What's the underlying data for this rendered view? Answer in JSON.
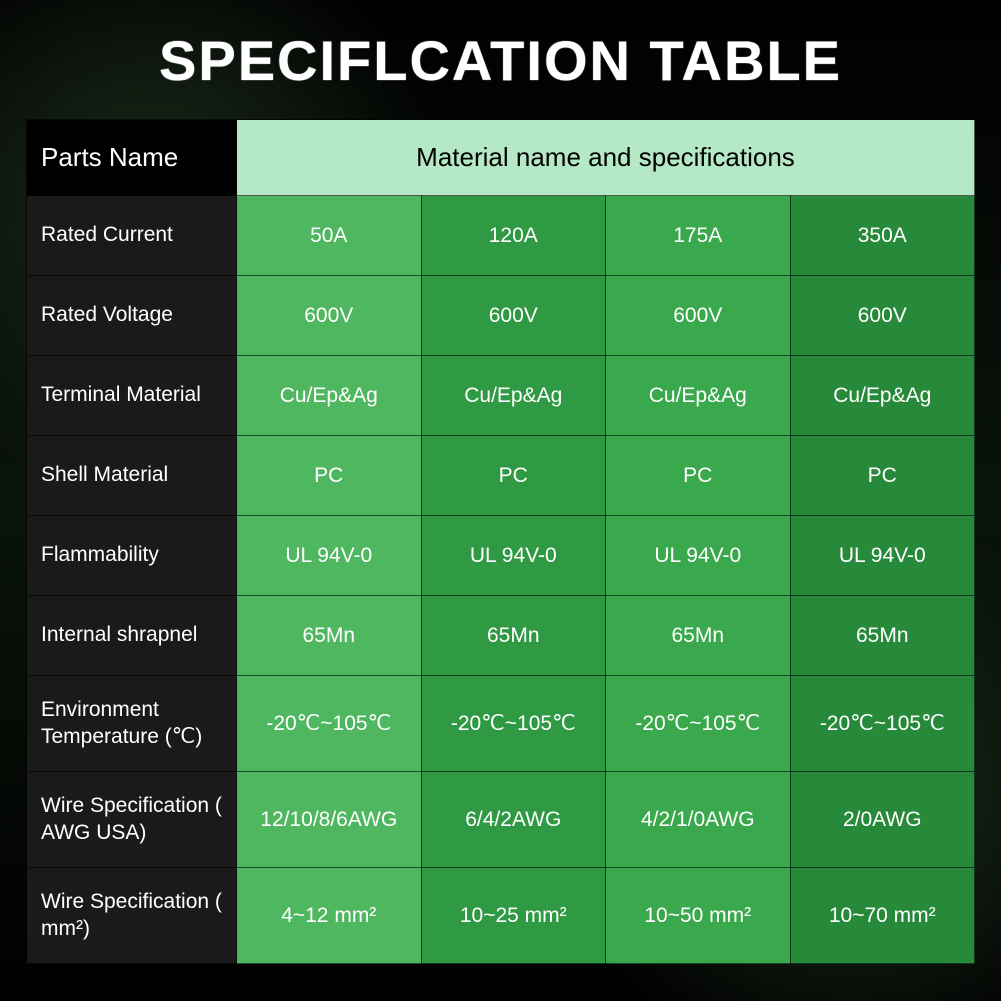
{
  "title": "SPECIFLCATION TABLE",
  "header": {
    "parts_label": "Parts Name",
    "materials_label": "Material name and specifications",
    "parts_bg": "#000000",
    "materials_bg": "#b5e9c6"
  },
  "column_colors": [
    "#4fb760",
    "#2f9a43",
    "#3aa84d",
    "#278a3a"
  ],
  "label_col_bg": "#1a1a1a",
  "text_color": "#ffffff",
  "border_color": "#000000",
  "font_size_header": 26,
  "font_size_cell": 21,
  "rows": [
    {
      "label": "Rated Current",
      "values": [
        "50A",
        "120A",
        "175A",
        "350A"
      ],
      "tall": false
    },
    {
      "label": "Rated Voltage",
      "values": [
        "600V",
        "600V",
        "600V",
        "600V"
      ],
      "tall": false
    },
    {
      "label": "Terminal Material",
      "values": [
        "Cu/Ep&Ag",
        "Cu/Ep&Ag",
        "Cu/Ep&Ag",
        "Cu/Ep&Ag"
      ],
      "tall": false
    },
    {
      "label": "Shell Material",
      "values": [
        "PC",
        "PC",
        "PC",
        "PC"
      ],
      "tall": false
    },
    {
      "label": "Flammability",
      "values": [
        "UL 94V-0",
        "UL 94V-0",
        "UL 94V-0",
        "UL 94V-0"
      ],
      "tall": false
    },
    {
      "label": "Internal shrapnel",
      "values": [
        "65Mn",
        "65Mn",
        "65Mn",
        "65Mn"
      ],
      "tall": false
    },
    {
      "label": "Environment Temperature (℃)",
      "values": [
        "-20℃~105℃",
        "-20℃~105℃",
        "-20℃~105℃",
        "-20℃~105℃"
      ],
      "tall": true
    },
    {
      "label": "Wire Specification ( AWG USA)",
      "values": [
        "12/10/8/6AWG",
        "6/4/2AWG",
        "4/2/1/0AWG",
        "2/0AWG"
      ],
      "tall": true
    },
    {
      "label": "Wire Specification ( mm²)",
      "values": [
        "4~12 mm²",
        "10~25 mm²",
        "10~50 mm²",
        "10~70 mm²"
      ],
      "tall": true
    }
  ]
}
